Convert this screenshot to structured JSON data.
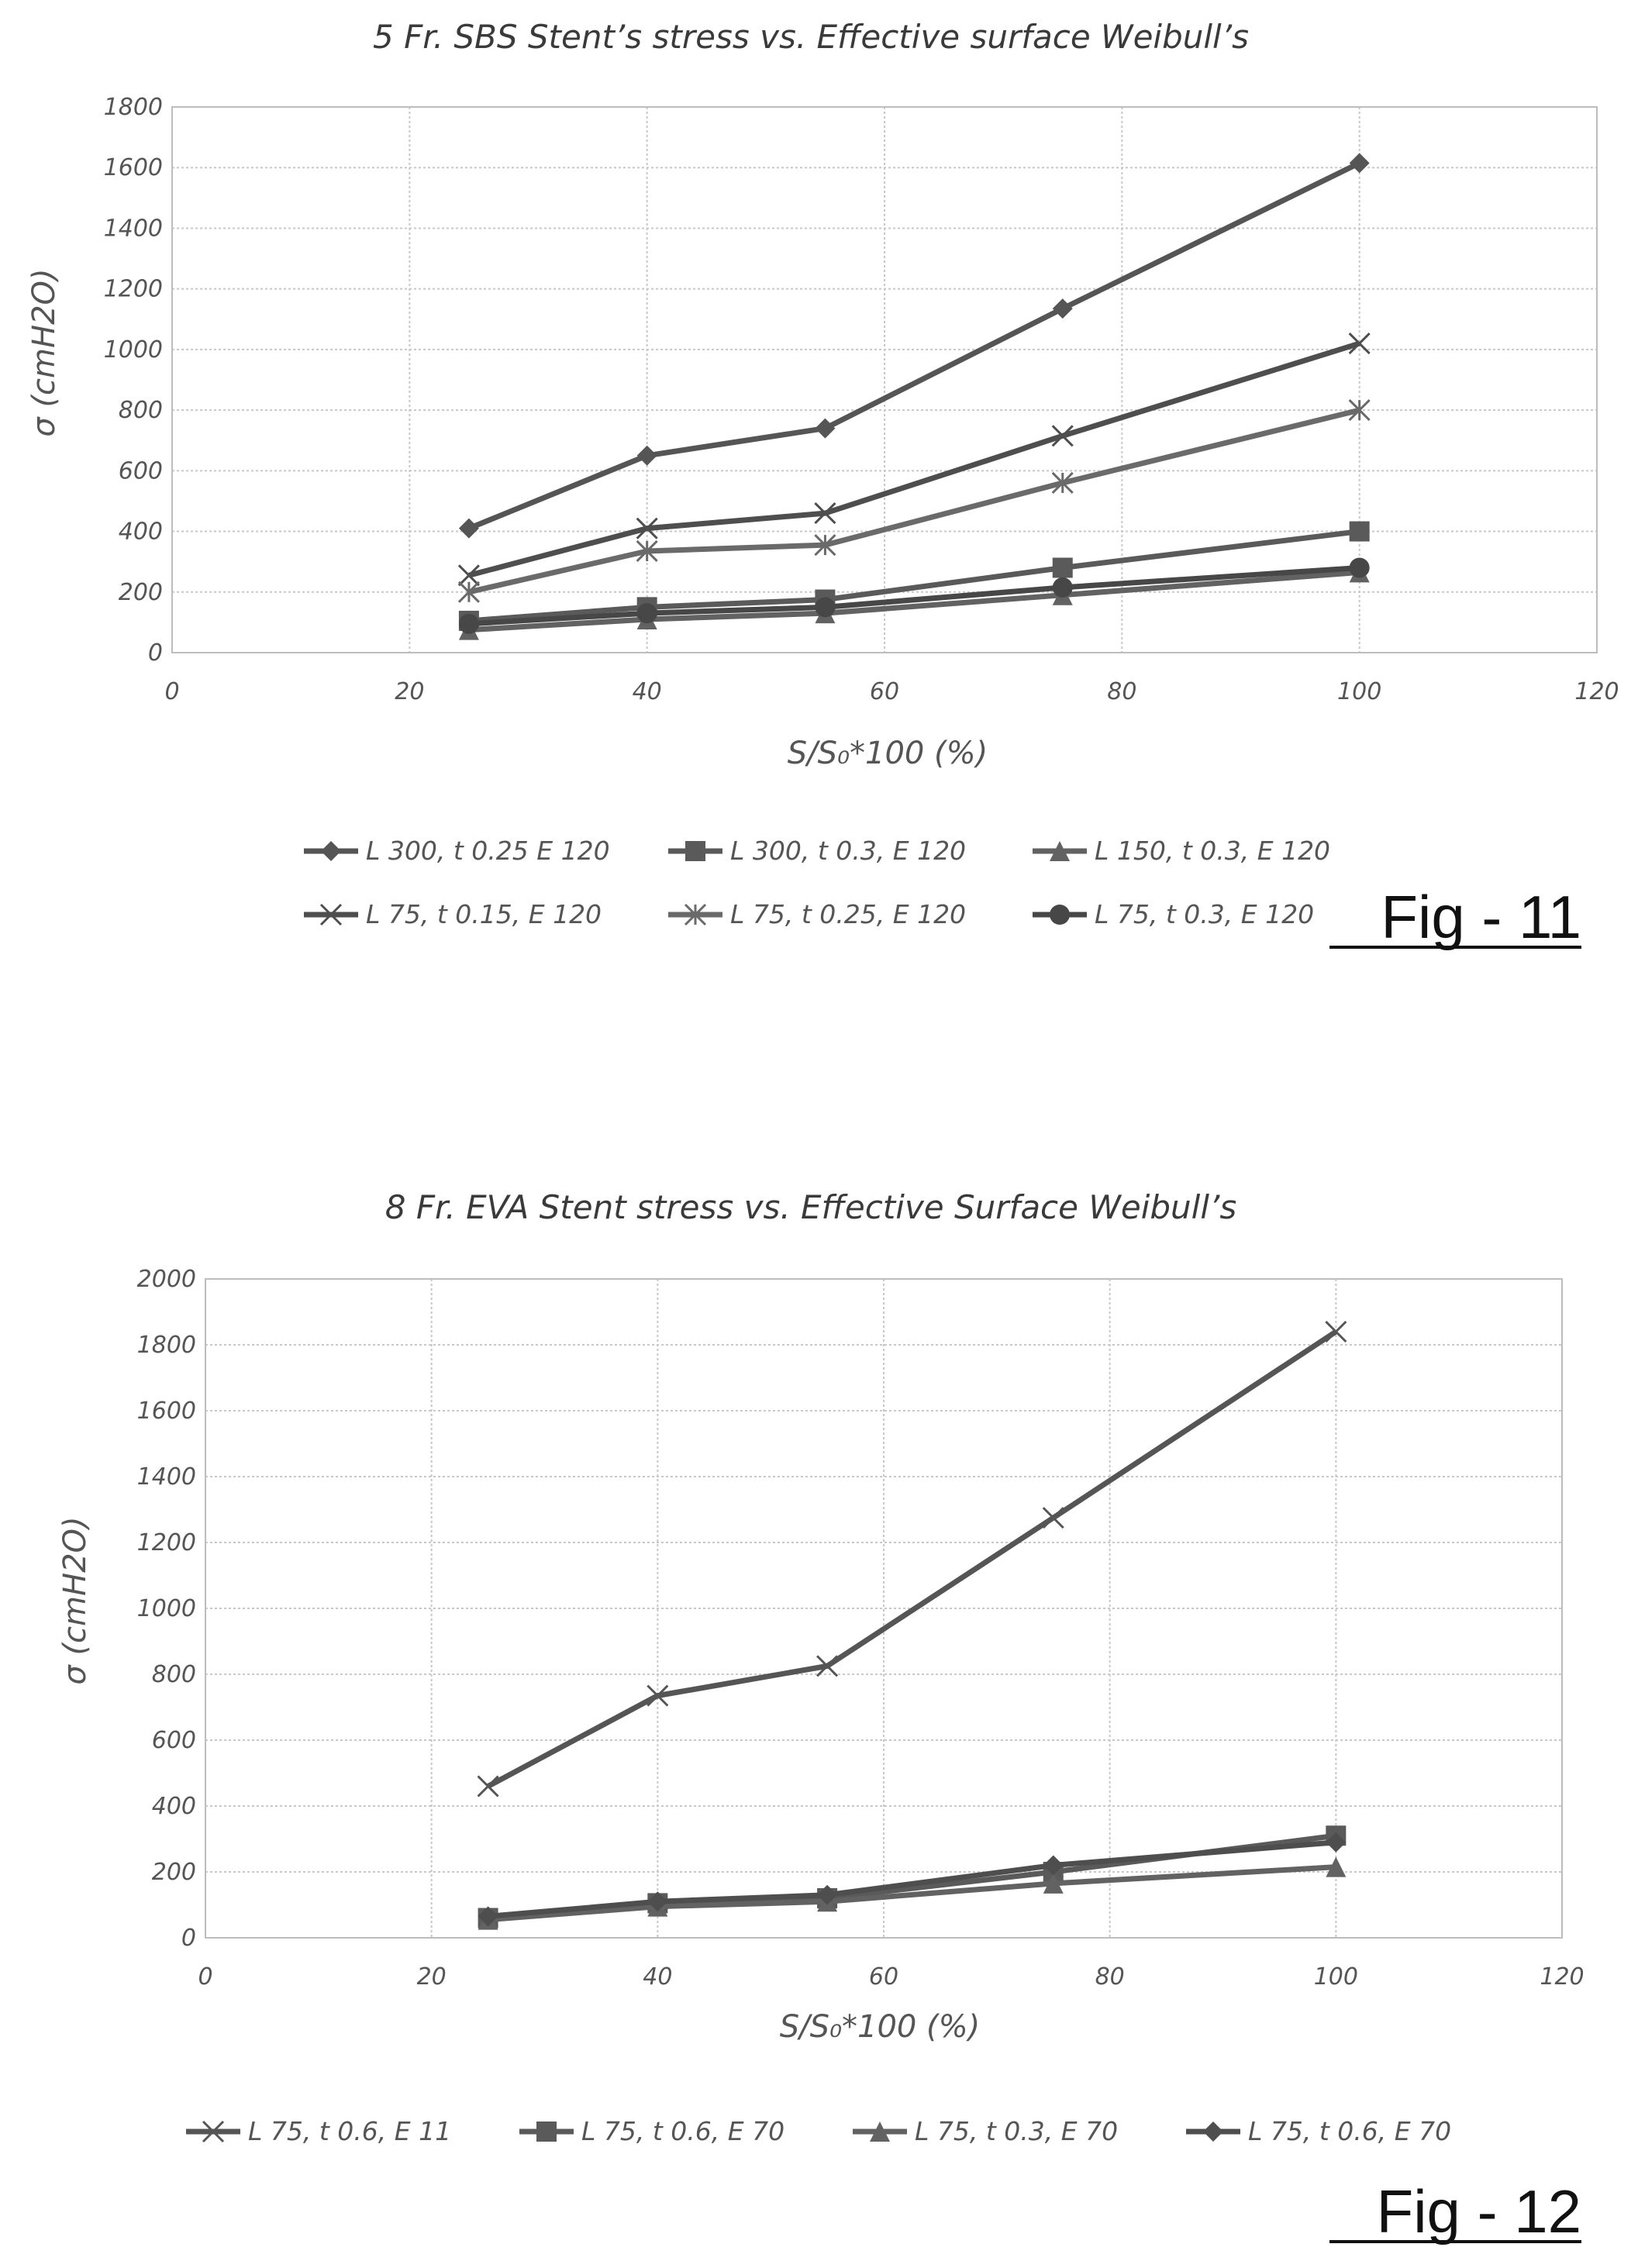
{
  "figures": [
    {
      "label": "Fig - 11",
      "chart_data": {
        "type": "line",
        "title": "5 Fr. SBS Stent’s stress vs. Effective surface Weibull’s",
        "xlabel": "S/S₀*100 (%)",
        "ylabel": "σ (cmH2O)",
        "xlim": [
          0,
          120
        ],
        "ylim": [
          0,
          1800
        ],
        "xticks": [
          0,
          20,
          40,
          60,
          80,
          100,
          120
        ],
        "yticks": [
          0,
          200,
          400,
          600,
          800,
          1000,
          1200,
          1400,
          1600,
          1800
        ],
        "grid": true,
        "legend_position": "bottom",
        "x": [
          25,
          40,
          55,
          75,
          100
        ],
        "series": [
          {
            "name": "L 300, t 0.25 E 120",
            "values": [
              410,
              650,
              740,
              1135,
              1615
            ],
            "marker": "diamond"
          },
          {
            "name": "L 300, t 0.3, E 120",
            "values": [
              105,
              150,
              175,
              280,
              400
            ],
            "marker": "square"
          },
          {
            "name": "L 150, t 0.3, E 120",
            "values": [
              75,
              110,
              130,
              190,
              265
            ],
            "marker": "triangle"
          },
          {
            "name": "L 75, t 0.15, E 120",
            "values": [
              255,
              410,
              460,
              715,
              1020
            ],
            "marker": "x"
          },
          {
            "name": "L 75, t 0.25, E 120",
            "values": [
              200,
              335,
              355,
              560,
              800
            ],
            "marker": "star"
          },
          {
            "name": "L 75, t 0.3, E 120",
            "values": [
              95,
              130,
              150,
              215,
              280
            ],
            "marker": "circle"
          }
        ]
      }
    },
    {
      "label": "Fig - 12",
      "chart_data": {
        "type": "line",
        "title": "8 Fr. EVA Stent stress vs. Effective Surface Weibull’s",
        "xlabel": "S/S₀*100 (%)",
        "ylabel": "σ (cmH2O)",
        "xlim": [
          0,
          120
        ],
        "ylim": [
          0,
          2000
        ],
        "xticks": [
          0,
          20,
          40,
          60,
          80,
          100,
          120
        ],
        "yticks": [
          0,
          200,
          400,
          600,
          800,
          1000,
          1200,
          1400,
          1600,
          1800,
          2000
        ],
        "grid": true,
        "legend_position": "bottom",
        "x": [
          25,
          40,
          55,
          75,
          100
        ],
        "series": [
          {
            "name": "L 75, t 0.6, E 11",
            "values": [
              460,
              735,
              825,
              1275,
              1840
            ],
            "marker": "x"
          },
          {
            "name": "L 75, t 0.6, E 70",
            "values": [
              60,
              105,
              120,
              200,
              310
            ],
            "marker": "square"
          },
          {
            "name": "L 75, t 0.3, E 70",
            "values": [
              55,
              95,
              110,
              165,
              215
            ],
            "marker": "triangle"
          },
          {
            "name": "L 75, t 0.6, E 70",
            "values": [
              65,
              110,
              130,
              220,
              290
            ],
            "marker": "diamond"
          }
        ]
      }
    }
  ],
  "colors": {
    "series": [
      "#555555",
      "#5a5a5a",
      "#626262",
      "#4e4e4e",
      "#6a6a6a",
      "#474747"
    ],
    "grid": "#c8c8c8",
    "text": "#555555"
  }
}
